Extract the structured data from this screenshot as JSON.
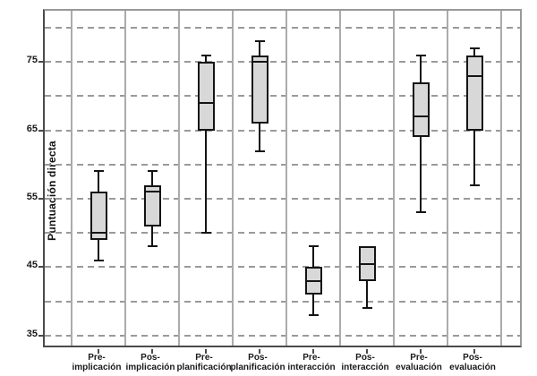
{
  "chart_data": {
    "type": "boxplot",
    "title": "",
    "xlabel": "",
    "ylabel": "Puntuación directa",
    "ylim": [
      33,
      82.5
    ],
    "grid": "horizontal dashed every 5 units; solid vertical separators between categories",
    "gridline_values": [
      35,
      40,
      45,
      50,
      55,
      60,
      65,
      70,
      75,
      80
    ],
    "ytick_labels": [
      "35",
      "45",
      "55",
      "65",
      "75"
    ],
    "ytick_values": [
      35,
      45,
      55,
      65,
      75
    ],
    "legend_position": "none",
    "categories": [
      "Pre-implicación",
      "Pos-implicación",
      "Pre-planificación",
      "Pos-planificación",
      "Pre-interacción",
      "Pos-interacción",
      "Pre-evaluación",
      "Pos-evaluación"
    ],
    "series": [
      {
        "category": "Pre-implicación",
        "label_lines": [
          "Pre-",
          "implicación"
        ],
        "min": 46,
        "q1": 49,
        "median": 50,
        "q3": 56,
        "max": 59
      },
      {
        "category": "Pos-implicación",
        "label_lines": [
          "Pos-",
          "implicación"
        ],
        "min": 48,
        "q1": 51,
        "median": 56,
        "q3": 57,
        "max": 59
      },
      {
        "category": "Pre-planificación",
        "label_lines": [
          "Pre-",
          "planificación"
        ],
        "min": 50,
        "q1": 65,
        "median": 69,
        "q3": 75,
        "max": 76
      },
      {
        "category": "Pos-planificación",
        "label_lines": [
          "Pos-",
          "planificación"
        ],
        "min": 62,
        "q1": 66,
        "median": 75,
        "q3": 76,
        "max": 78
      },
      {
        "category": "Pre-interacción",
        "label_lines": [
          "Pre-",
          "interacción"
        ],
        "min": 38,
        "q1": 41,
        "median": 43,
        "q3": 45,
        "max": 48
      },
      {
        "category": "Pos-interacción",
        "label_lines": [
          "Pos-",
          "interacción"
        ],
        "min": 39,
        "q1": 43,
        "median": 45.5,
        "q3": 48,
        "max": 48
      },
      {
        "category": "Pre-evaluación",
        "label_lines": [
          "Pre-",
          "evaluación"
        ],
        "min": 53,
        "q1": 64,
        "median": 67,
        "q3": 72,
        "max": 76
      },
      {
        "category": "Pos-evaluación",
        "label_lines": [
          "Pos-",
          "evaluación"
        ],
        "min": 57,
        "q1": 65,
        "median": 73,
        "q3": 76,
        "max": 77
      }
    ],
    "colors": {
      "background": "#ffffff",
      "box_fill": "#d8d8d8",
      "box_border": "#141414",
      "grid_dashed": "#9a9a9a",
      "separator": "#ababab",
      "axis_dark": "#4a4a4a",
      "frame_light": "#999999",
      "text": "#1a1a1a"
    }
  }
}
